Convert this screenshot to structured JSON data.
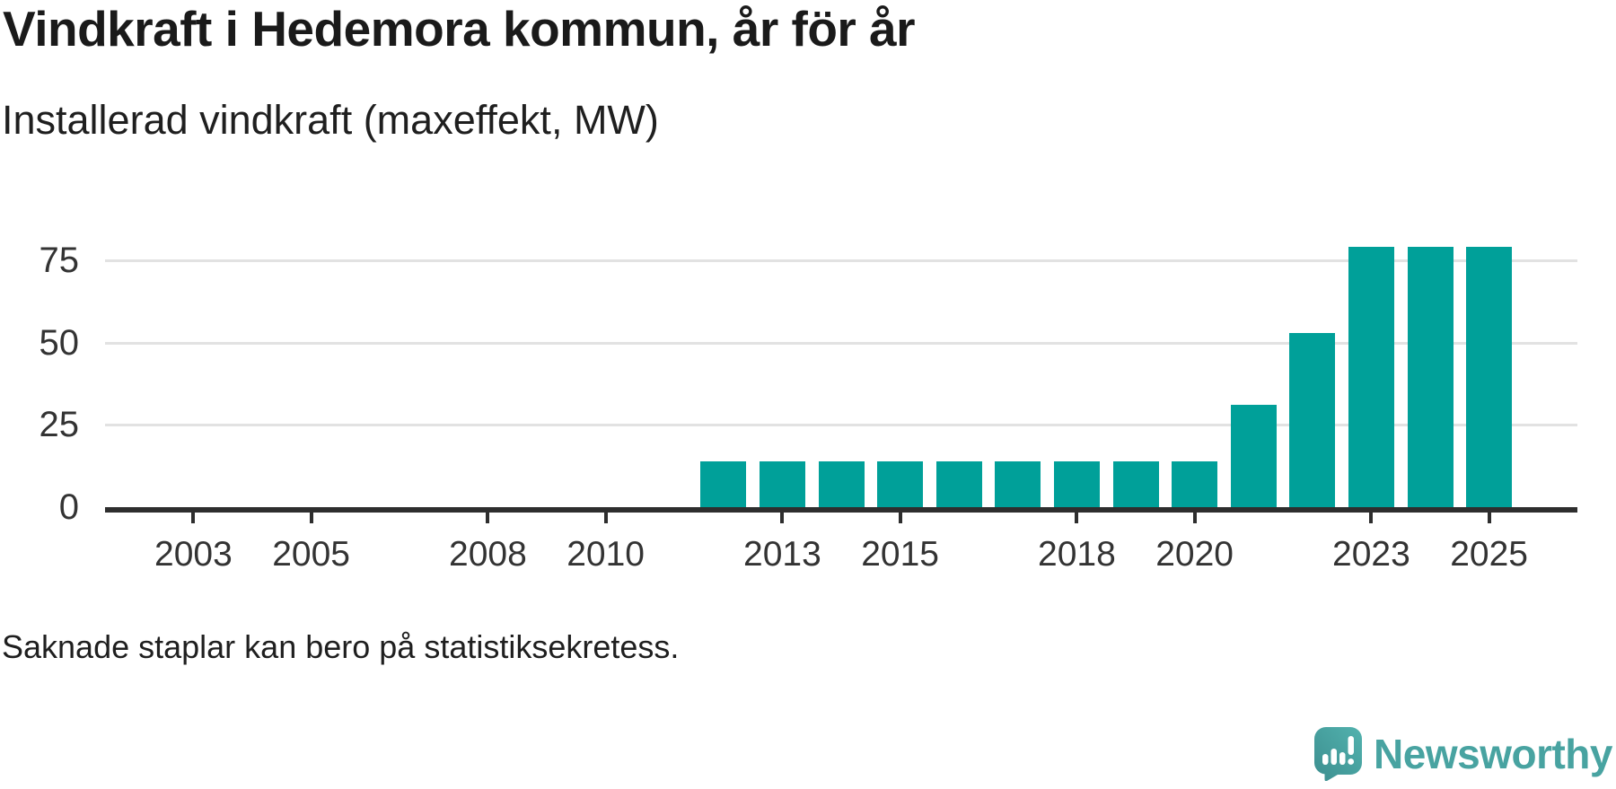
{
  "header": {
    "title": "Vindkraft i Hedemora kommun, år för år",
    "subtitle": "Installerad vindkraft (maxeffekt, MW)"
  },
  "footer": {
    "note": "Saknade staplar kan bero på statistiksekretess.",
    "brand": "Newsworthy"
  },
  "colors": {
    "bar": "#00a099",
    "grid": "#e2e2e2",
    "axis": "#2e2e2e",
    "tick_label": "#333333",
    "title_text": "#1a1a1a",
    "brand_teal": "#48a3a1",
    "brand_icon_dark": "#3c8e8f",
    "brand_icon_light": "#52b2ae"
  },
  "chart_data": {
    "type": "bar",
    "title": "Vindkraft i Hedemora kommun, år för år",
    "subtitle": "Installerad vindkraft (maxeffekt, MW)",
    "unit": "MW",
    "categories": [
      2012,
      2013,
      2014,
      2015,
      2016,
      2017,
      2018,
      2019,
      2020,
      2021,
      2022,
      2023,
      2024,
      2025
    ],
    "values": [
      14,
      14,
      14,
      14,
      14,
      14,
      14,
      14,
      14,
      31,
      53,
      79,
      79,
      79
    ],
    "xticks": [
      2003,
      2005,
      2008,
      2010,
      2013,
      2015,
      2018,
      2020,
      2023,
      2025
    ],
    "yticks": [
      0,
      25,
      50,
      75
    ],
    "ylim": [
      0,
      85
    ],
    "x_domain": [
      2001.5,
      2026.5
    ],
    "grid": "horizontal",
    "legend": "none",
    "note": "Missing bars may be due to statistical confidentiality (Saknade staplar kan bero på statistiksekretess.)"
  }
}
